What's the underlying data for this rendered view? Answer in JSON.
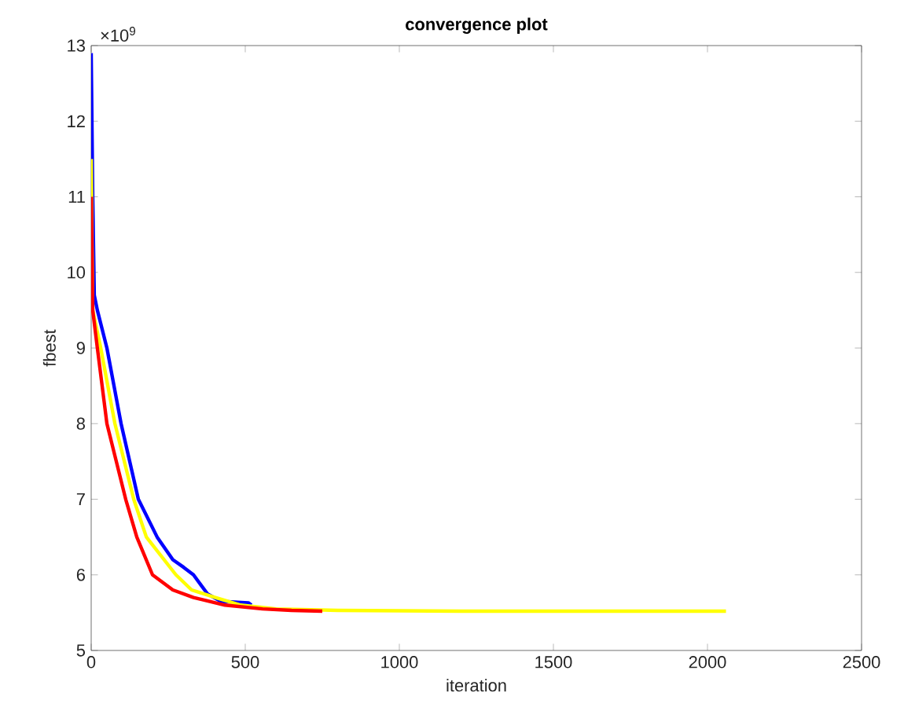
{
  "chart_data": {
    "type": "line",
    "title": "convergence plot",
    "xlabel": "iteration",
    "ylabel": "fbest",
    "annotations": [
      "×10$^{9}$"
    ],
    "xlim": [
      0,
      2500
    ],
    "xticks": [
      0,
      500,
      1000,
      1500,
      2000,
      2500
    ],
    "ylim": [
      5,
      13
    ],
    "yticks": [
      5,
      6,
      7,
      8,
      9,
      10,
      11,
      12,
      13
    ],
    "grid": false,
    "marker": "none",
    "line_style": "solid",
    "series": [
      {
        "color": "#0000ff",
        "x": [
          0,
          5,
          10,
          20,
          51,
          97,
          153,
          214,
          265,
          300,
          332,
          377,
          420,
          510,
          520
        ],
        "values": [
          12.9,
          11,
          9.7,
          9.5,
          9,
          8,
          7,
          6.5,
          6.2,
          6.1,
          6,
          5.75,
          5.65,
          5.63,
          5.6
        ]
      },
      {
        "color": "#ffff00",
        "x": [
          0,
          5,
          31,
          77,
          138,
          179,
          275,
          326,
          403,
          485,
          600,
          800,
          1200,
          1600,
          2060
        ],
        "values": [
          11.5,
          9.5,
          9,
          8,
          7,
          6.5,
          6,
          5.8,
          5.7,
          5.6,
          5.55,
          5.53,
          5.52,
          5.52,
          5.52
        ]
      },
      {
        "color": "#ff0000",
        "x": [
          0,
          5,
          20,
          51,
          112,
          148,
          199,
          265,
          332,
          434,
          556,
          650,
          750
        ],
        "values": [
          11,
          9.5,
          9,
          8,
          7,
          6.5,
          6,
          5.8,
          5.7,
          5.6,
          5.55,
          5.53,
          5.52
        ]
      }
    ]
  }
}
